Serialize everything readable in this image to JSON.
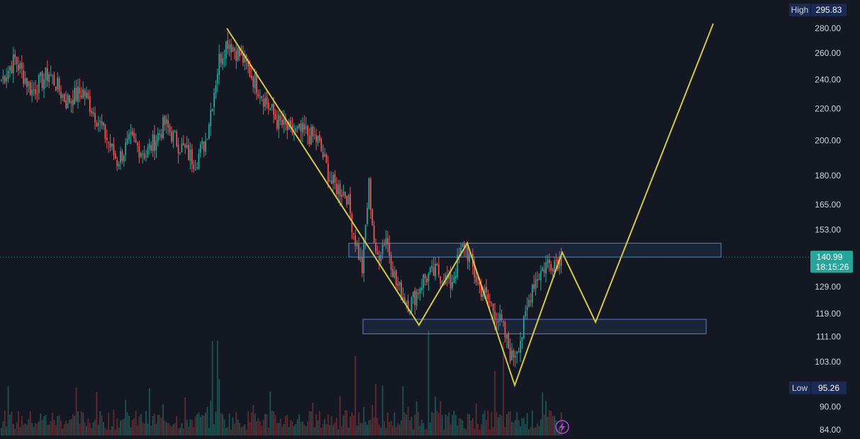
{
  "chart_data": {
    "type": "candlestick",
    "y_scale": "log",
    "y_ticks": [
      "280.00",
      "260.00",
      "240.00",
      "220.00",
      "200.00",
      "180.00",
      "165.00",
      "153.00",
      "129.00",
      "119.00",
      "111.00",
      "103.00",
      "90.00",
      "84.00"
    ],
    "high_label": "High",
    "high_value": "295.83",
    "low_label": "Low",
    "low_value": "95.26",
    "last_price": "140.99",
    "countdown": "18:15:26",
    "colors": {
      "up": "#26a69a",
      "down": "#ef5350",
      "pattern": "#d4c84a",
      "zone": "#5b7ad6",
      "price_line": "#26a69a"
    },
    "anchors": [
      [
        0,
        240
      ],
      [
        8,
        255
      ],
      [
        18,
        232
      ],
      [
        28,
        245
      ],
      [
        38,
        225
      ],
      [
        48,
        232
      ],
      [
        58,
        210
      ],
      [
        68,
        188
      ],
      [
        76,
        200
      ],
      [
        85,
        192
      ],
      [
        96,
        210
      ],
      [
        104,
        198
      ],
      [
        114,
        188
      ],
      [
        120,
        200
      ],
      [
        128,
        255
      ],
      [
        133,
        270
      ],
      [
        142,
        255
      ],
      [
        152,
        232
      ],
      [
        162,
        212
      ],
      [
        170,
        205
      ],
      [
        178,
        205
      ],
      [
        186,
        200
      ],
      [
        194,
        176
      ],
      [
        203,
        170
      ],
      [
        207,
        152
      ],
      [
        212,
        136
      ],
      [
        216,
        175
      ],
      [
        220,
        140
      ],
      [
        226,
        150
      ],
      [
        232,
        130
      ],
      [
        240,
        122
      ],
      [
        248,
        132
      ],
      [
        256,
        135
      ],
      [
        264,
        130
      ],
      [
        272,
        147
      ],
      [
        280,
        130
      ],
      [
        288,
        122
      ],
      [
        294,
        115
      ],
      [
        300,
        104
      ],
      [
        306,
        112
      ],
      [
        312,
        130
      ],
      [
        320,
        138
      ],
      [
        330,
        141
      ]
    ],
    "pattern_points": [
      [
        320,
        280
      ],
      [
        591,
        115
      ],
      [
        659,
        147
      ],
      [
        726,
        96
      ],
      [
        793,
        143
      ],
      [
        840,
        116
      ],
      [
        1006,
        284
      ]
    ],
    "zones": [
      {
        "x_start": 492,
        "x_end": 1017,
        "top": 147,
        "bottom": 141
      },
      {
        "x_start": 512,
        "x_end": 996,
        "top": 117,
        "bottom": 112
      }
    ],
    "volume_spike_bars": [
      124,
      127,
      128,
      208,
      220,
      251,
      290,
      295
    ]
  },
  "icons": {
    "lightning": "lightning-icon"
  }
}
